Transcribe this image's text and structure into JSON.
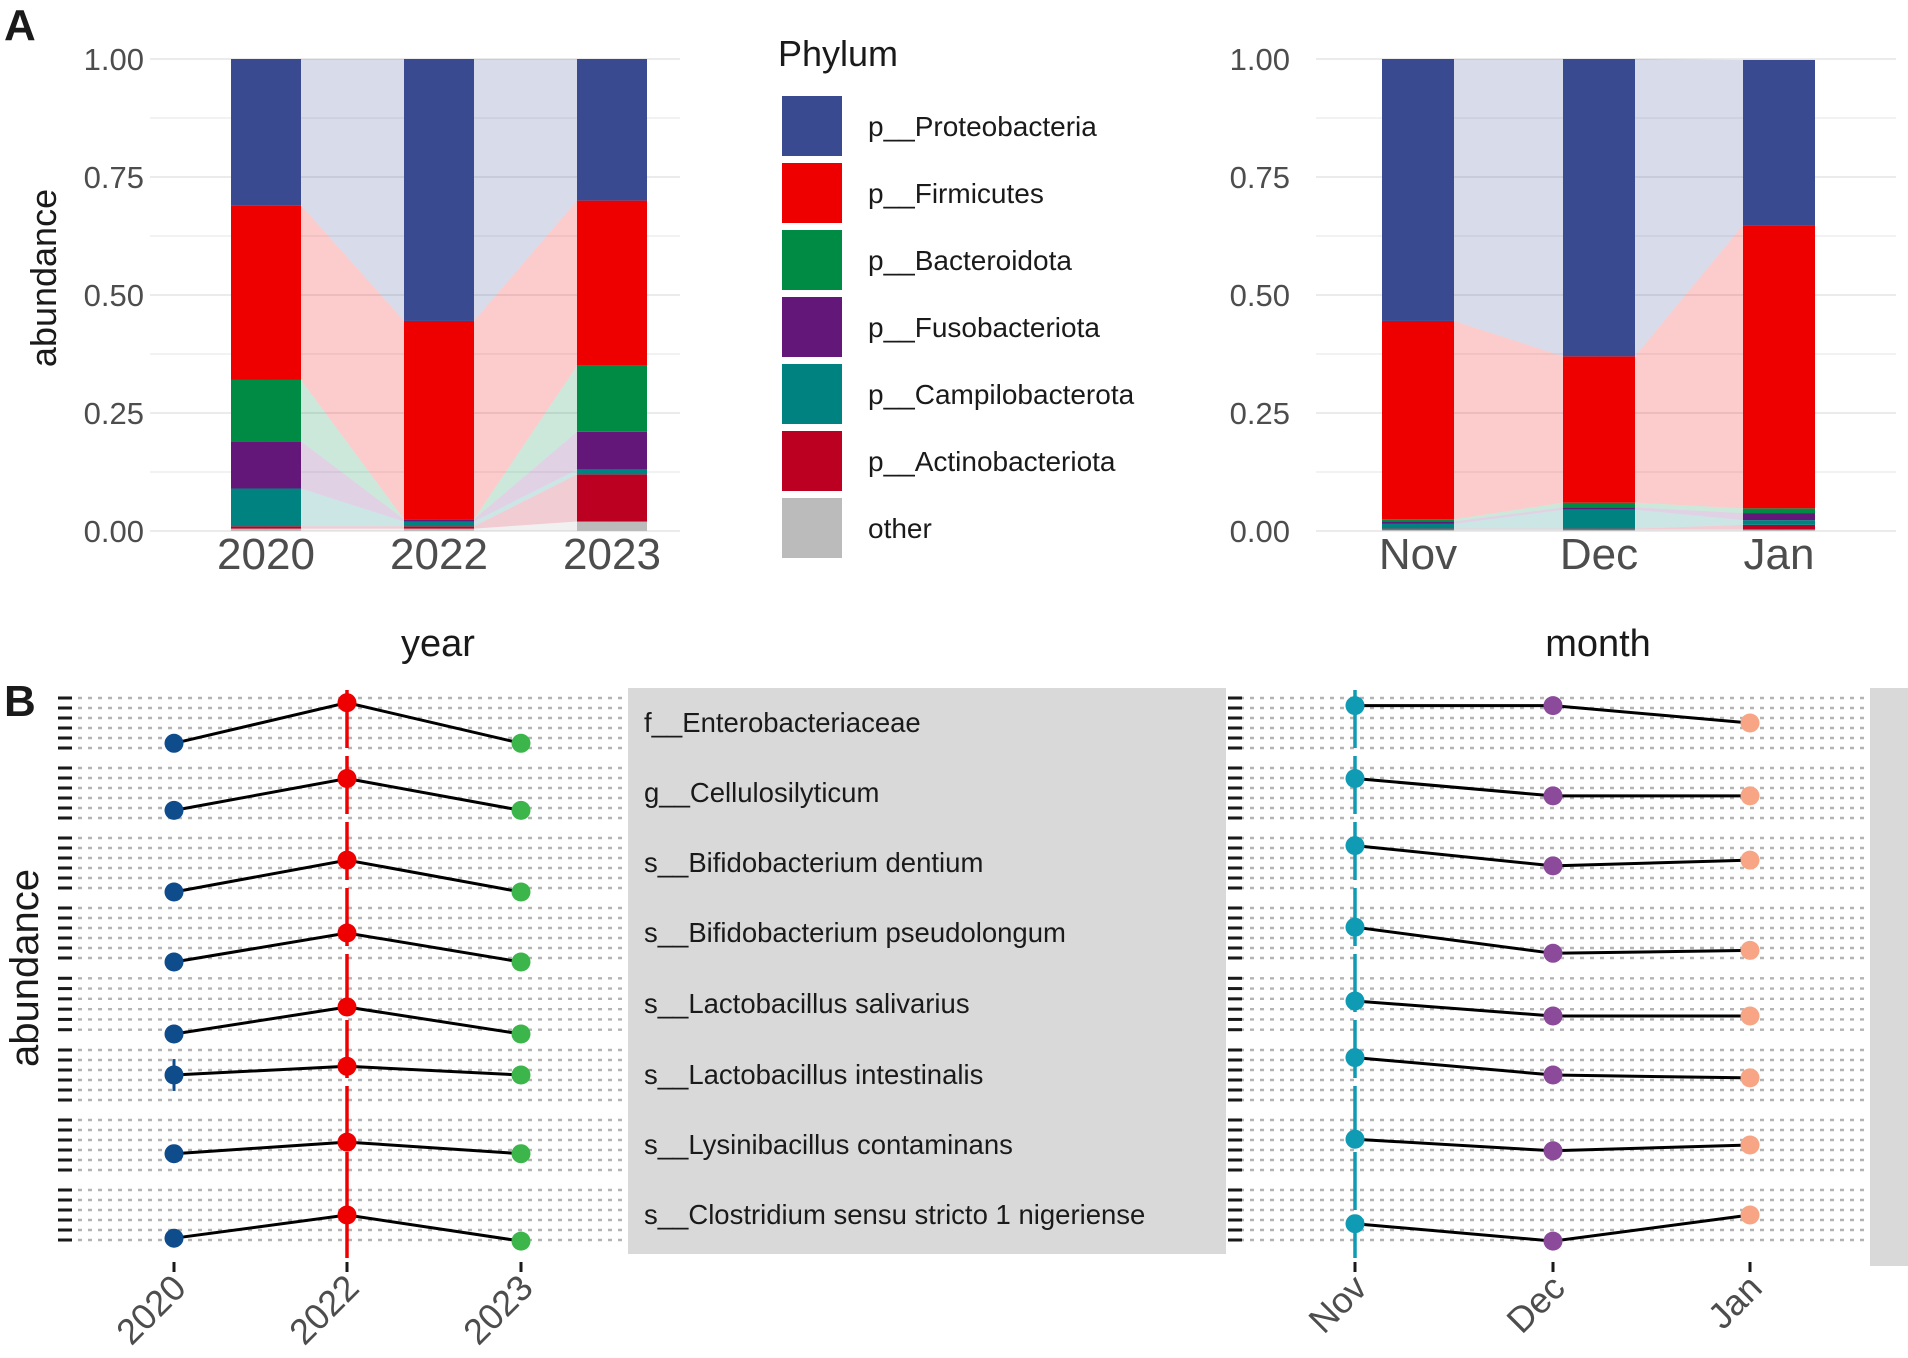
{
  "panel_labels": [
    "A",
    "B"
  ],
  "legend": {
    "title": "Phylum",
    "items": [
      {
        "label": "p__Proteobacteria",
        "color": "#3a4a90"
      },
      {
        "label": "p__Firmicutes",
        "color": "#ee0000"
      },
      {
        "label": "p__Bacteroidota",
        "color": "#008b45"
      },
      {
        "label": "p__Fusobacteriota",
        "color": "#631879"
      },
      {
        "label": "p__Campilobacterota",
        "color": "#008280"
      },
      {
        "label": "p__Actinobacteriota",
        "color": "#bb0021"
      },
      {
        "label": "other",
        "color": "#bbbbbb"
      }
    ]
  },
  "chart_data": [
    {
      "type": "bar",
      "subtype": "stacked-alluvial",
      "title": "",
      "ylabel": "abundance",
      "xlabel": "",
      "ylim": [
        0,
        1
      ],
      "yticks": [
        "0.00",
        "0.25",
        "0.50",
        "0.75",
        "1.00"
      ],
      "categories": [
        "2020",
        "2022",
        "2023"
      ],
      "series": [
        {
          "name": "other",
          "values": [
            0.005,
            0.005,
            0.02
          ]
        },
        {
          "name": "p__Actinobacteriota",
          "values": [
            0.005,
            0.005,
            0.1
          ]
        },
        {
          "name": "p__Campilobacterota",
          "values": [
            0.08,
            0.01,
            0.01
          ]
        },
        {
          "name": "p__Fusobacteriota",
          "values": [
            0.1,
            0.005,
            0.08
          ]
        },
        {
          "name": "p__Bacteroidota",
          "values": [
            0.13,
            0.0,
            0.14
          ]
        },
        {
          "name": "p__Firmicutes",
          "values": [
            0.37,
            0.42,
            0.35
          ]
        },
        {
          "name": "p__Proteobacteria",
          "values": [
            0.31,
            0.555,
            0.3
          ]
        }
      ]
    },
    {
      "type": "bar",
      "subtype": "stacked-alluvial",
      "title": "",
      "ylabel": "",
      "xlabel": "",
      "ylim": [
        0,
        1
      ],
      "yticks": [
        "0.00",
        "0.25",
        "0.50",
        "0.75",
        "1.00"
      ],
      "categories": [
        "Nov",
        "Dec",
        "Jan"
      ],
      "series": [
        {
          "name": "other",
          "values": [
            0.003,
            0.003,
            0.003
          ]
        },
        {
          "name": "p__Actinobacteriota",
          "values": [
            0.002,
            0.002,
            0.01
          ]
        },
        {
          "name": "p__Campilobacterota",
          "values": [
            0.01,
            0.04,
            0.01
          ]
        },
        {
          "name": "p__Fusobacteriota",
          "values": [
            0.005,
            0.005,
            0.015
          ]
        },
        {
          "name": "p__Bacteroidota",
          "values": [
            0.005,
            0.01,
            0.01
          ]
        },
        {
          "name": "p__Firmicutes",
          "values": [
            0.42,
            0.31,
            0.6
          ]
        },
        {
          "name": "p__Proteobacteria",
          "values": [
            0.555,
            0.63,
            0.35
          ]
        }
      ]
    },
    {
      "type": "line",
      "title": "year",
      "ylabel": "abundance",
      "xlabel": "",
      "x": [
        "2020",
        "2022",
        "2023"
      ],
      "point_colors": [
        "#0f4c8c",
        "#ee0000",
        "#3cb54a"
      ],
      "series": [
        {
          "name": "f__Enterobacteriaceae",
          "values": [
            0.15,
            0.85,
            0.15
          ],
          "err": [
            0,
            0,
            0
          ]
        },
        {
          "name": "g__Cellulosilyticum",
          "values": [
            0.2,
            0.75,
            0.2
          ],
          "err": [
            0,
            0,
            0
          ]
        },
        {
          "name": "s__Bifidobacterium dentium",
          "values": [
            0.0,
            0.55,
            0.0
          ],
          "err": [
            0,
            0,
            0
          ]
        },
        {
          "name": "s__Bifidobacterium pseudolongum",
          "values": [
            0.0,
            0.5,
            0.0
          ],
          "err": [
            0,
            0,
            0
          ]
        },
        {
          "name": "s__Lactobacillus salivarius",
          "values": [
            0.0,
            0.45,
            0.0
          ],
          "err": [
            0,
            0,
            0
          ]
        },
        {
          "name": "s__Lactobacillus intestinalis",
          "values": [
            0.5,
            0.65,
            0.5
          ],
          "err": [
            0.55,
            0,
            0
          ]
        },
        {
          "name": "s__Lysinibacillus contaminans",
          "values": [
            0.35,
            0.55,
            0.35
          ],
          "err": [
            0,
            0,
            0
          ]
        },
        {
          "name": "s__Clostridium sensu stricto 1 nigeriense",
          "values": [
            0.1,
            0.5,
            0.05
          ],
          "err": [
            0,
            0,
            0
          ]
        }
      ]
    },
    {
      "type": "line",
      "title": "month",
      "ylabel": "",
      "xlabel": "",
      "x": [
        "Nov",
        "Dec",
        "Jan"
      ],
      "point_colors": [
        "#0f9bb4",
        "#8c4a9b",
        "#f7a584"
      ],
      "series": [
        {
          "name": "f__Enterobacteriaceae",
          "values": [
            0.8,
            0.8,
            0.5
          ],
          "err": [
            0,
            0.1,
            0.1
          ]
        },
        {
          "name": "g__Cellulosilyticum",
          "values": [
            0.75,
            0.45,
            0.45
          ],
          "err": [
            0,
            0,
            0
          ]
        },
        {
          "name": "s__Bifidobacterium dentium",
          "values": [
            0.8,
            0.45,
            0.55
          ],
          "err": [
            0,
            0,
            0
          ]
        },
        {
          "name": "s__Bifidobacterium pseudolongum",
          "values": [
            0.6,
            0.15,
            0.2
          ],
          "err": [
            0,
            0,
            0
          ]
        },
        {
          "name": "s__Lactobacillus salivarius",
          "values": [
            0.55,
            0.3,
            0.3
          ],
          "err": [
            0,
            0.1,
            0.1
          ]
        },
        {
          "name": "s__Lactobacillus intestinalis",
          "values": [
            0.8,
            0.5,
            0.45
          ],
          "err": [
            0,
            0.1,
            0.1
          ]
        },
        {
          "name": "s__Lysinibacillus contaminans",
          "values": [
            0.6,
            0.4,
            0.5
          ],
          "err": [
            0,
            0,
            0
          ]
        },
        {
          "name": "s__Clostridium sensu stricto 1 nigeriense",
          "values": [
            0.35,
            0.05,
            0.5
          ],
          "err": [
            0,
            0,
            0.1
          ]
        }
      ]
    }
  ]
}
